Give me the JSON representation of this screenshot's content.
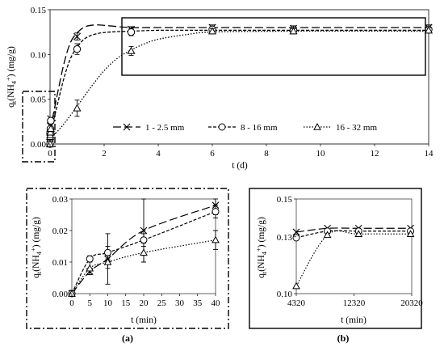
{
  "chart_data": [
    {
      "id": "main",
      "type": "line",
      "xlabel": "t (d)",
      "ylabel": "qt(NH4+) (mg/g)",
      "ylabel_parts": {
        "base": "q",
        "sub": "t",
        "open": "(NH",
        "sub2": "4",
        "sup": "+",
        "close": ") (mg/g)"
      },
      "xlim": [
        0,
        14
      ],
      "ylim": [
        0,
        0.15
      ],
      "xticks": [
        "0",
        "2",
        "4",
        "6",
        "8",
        "10",
        "12",
        "14"
      ],
      "yticks": [
        "0.00",
        "0.05",
        "0.10",
        "0.15"
      ],
      "legend_position": "bottom",
      "series": [
        {
          "name": "1 - 2.5 mm",
          "marker": "x",
          "dash": "10,4",
          "points": [
            [
              0.0,
              0.0
            ],
            [
              0.0035,
              0.007
            ],
            [
              0.007,
              0.011
            ],
            [
              0.014,
              0.02
            ],
            [
              0.028,
              0.028
            ],
            [
              1,
              0.12
            ],
            [
              3,
              0.128
            ],
            [
              6,
              0.13
            ],
            [
              9,
              0.129
            ],
            [
              14,
              0.13
            ]
          ],
          "errors": [
            0,
            0,
            0,
            0,
            0,
            0.004,
            0.003,
            0.003,
            0.003,
            0.003
          ],
          "curve_x": [
            0,
            0.2,
            0.5,
            0.75,
            1,
            1.3,
            1.7,
            2.2,
            3,
            4,
            6,
            9,
            14
          ],
          "curve_y": [
            0.015,
            0.045,
            0.088,
            0.113,
            0.124,
            0.131,
            0.133,
            0.132,
            0.13,
            0.13,
            0.13,
            0.13,
            0.13
          ]
        },
        {
          "name": "8 - 16 mm",
          "marker": "o",
          "dash": "4,2",
          "points": [
            [
              0.0,
              0.0
            ],
            [
              0.0035,
              0.011
            ],
            [
              0.007,
              0.013
            ],
            [
              0.014,
              0.017
            ],
            [
              0.028,
              0.026
            ],
            [
              1,
              0.106
            ],
            [
              3,
              0.125
            ],
            [
              6,
              0.128
            ],
            [
              9,
              0.127
            ],
            [
              14,
              0.128
            ]
          ],
          "errors": [
            0,
            0,
            0,
            0,
            0,
            0.006,
            0.004,
            0.003,
            0.003,
            0.003
          ],
          "curve_x": [
            0,
            0.2,
            0.5,
            0.75,
            1,
            1.3,
            1.7,
            2.2,
            3,
            4,
            6,
            9,
            14
          ],
          "curve_y": [
            0.012,
            0.035,
            0.072,
            0.095,
            0.108,
            0.118,
            0.123,
            0.125,
            0.126,
            0.127,
            0.127,
            0.127,
            0.127
          ]
        },
        {
          "name": "16 - 32 mm",
          "marker": "triangle",
          "dash": "1.5,2",
          "points": [
            [
              0.0,
              0.0
            ],
            [
              0.0035,
              0.008
            ],
            [
              0.007,
              0.01
            ],
            [
              0.014,
              0.013
            ],
            [
              0.028,
              0.017
            ],
            [
              1,
              0.04
            ],
            [
              3,
              0.104
            ],
            [
              6,
              0.126
            ],
            [
              9,
              0.126
            ],
            [
              14,
              0.127
            ]
          ],
          "errors": [
            0,
            0,
            0,
            0,
            0,
            0.009,
            0.005,
            0.003,
            0.003,
            0.003
          ],
          "curve_x": [
            0,
            0.5,
            1,
            1.5,
            2,
            2.5,
            3,
            3.5,
            4,
            5,
            6,
            9,
            14
          ],
          "curve_y": [
            0.005,
            0.022,
            0.042,
            0.063,
            0.082,
            0.096,
            0.105,
            0.112,
            0.117,
            0.122,
            0.125,
            0.126,
            0.126
          ]
        }
      ]
    },
    {
      "id": "a",
      "type": "line",
      "caption": "(a)",
      "xlabel": "t (min)",
      "ylabel": "qt(NH4+) (mg/g)",
      "xlim": [
        0,
        40
      ],
      "ylim": [
        0,
        0.03
      ],
      "xticks": [
        "0",
        "5",
        "10",
        "15",
        "20",
        "25",
        "30",
        "35",
        "40"
      ],
      "yticks": [
        "0.00",
        "0.01",
        "0.02",
        "0.03"
      ],
      "series": [
        {
          "name": "1 - 2.5 mm",
          "marker": "x",
          "dash": "10,4",
          "points": [
            [
              0,
              0.0
            ],
            [
              5,
              0.007
            ],
            [
              10,
              0.011
            ],
            [
              20,
              0.02
            ],
            [
              40,
              0.028
            ]
          ],
          "errors": [
            0.001,
            0.001,
            0.008,
            0.01,
            0.003
          ]
        },
        {
          "name": "8 - 16 mm",
          "marker": "o",
          "dash": "4,2",
          "points": [
            [
              0,
              0.0
            ],
            [
              5,
              0.011
            ],
            [
              10,
              0.013
            ],
            [
              20,
              0.017
            ],
            [
              40,
              0.026
            ]
          ],
          "errors": [
            0.001,
            0.001,
            0.002,
            0.002,
            0.002
          ]
        },
        {
          "name": "16 - 32 mm",
          "marker": "triangle",
          "dash": "1.5,2",
          "points": [
            [
              0,
              0.0
            ],
            [
              5,
              0.008
            ],
            [
              10,
              0.01
            ],
            [
              20,
              0.013
            ],
            [
              40,
              0.017
            ]
          ],
          "errors": [
            0.001,
            0.002,
            0.002,
            0.003,
            0.003
          ]
        }
      ]
    },
    {
      "id": "b",
      "type": "line",
      "caption": "(b)",
      "xlabel": "t (min)",
      "ylabel": "qt(NH4+) (mg/g)",
      "xlim": [
        4320,
        20320
      ],
      "ylim": [
        0.1,
        0.15
      ],
      "xticks": [
        "4320",
        "12320",
        "20320"
      ],
      "yticks": [
        "0.10",
        "0.13",
        "0.15"
      ],
      "series": [
        {
          "name": "1 - 2.5 mm",
          "marker": "x",
          "dash": "10,4",
          "points": [
            [
              4320,
              0.1325
            ],
            [
              8640,
              0.1345
            ],
            [
              12960,
              0.1345
            ],
            [
              20160,
              0.1345
            ]
          ]
        },
        {
          "name": "8 - 16 mm",
          "marker": "o",
          "dash": "4,2",
          "points": [
            [
              4320,
              0.1295
            ],
            [
              8640,
              0.133
            ],
            [
              12960,
              0.133
            ],
            [
              20160,
              0.133
            ]
          ]
        },
        {
          "name": "16 - 32 mm",
          "marker": "triangle",
          "dash": "1.5,2",
          "points": [
            [
              4320,
              0.104
            ],
            [
              8640,
              0.131
            ],
            [
              12960,
              0.1315
            ],
            [
              20160,
              0.1315
            ]
          ]
        }
      ]
    }
  ]
}
